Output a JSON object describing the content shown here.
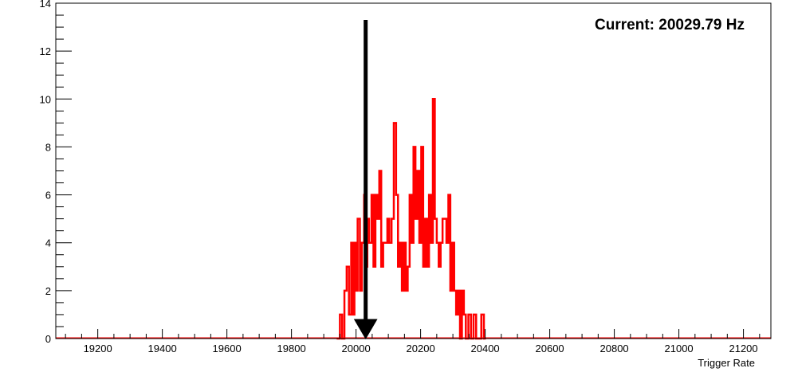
{
  "chart_data": {
    "type": "histogram",
    "xlabel": "Trigger Rate",
    "ylabel": "",
    "xlim": [
      19070,
      21285
    ],
    "ylim": [
      0,
      14
    ],
    "x_ticks": [
      19200,
      19400,
      19600,
      19800,
      20000,
      20200,
      20400,
      20600,
      20800,
      21000,
      21200
    ],
    "y_ticks": [
      0,
      2,
      4,
      6,
      8,
      10,
      12,
      14
    ],
    "grid": false,
    "series": [
      {
        "color": "#ff0000",
        "bins": [
          [
            19940,
            19950,
            0
          ],
          [
            19950,
            19957,
            1
          ],
          [
            19957,
            19964,
            0
          ],
          [
            19964,
            19971,
            2
          ],
          [
            19971,
            19978,
            3
          ],
          [
            19978,
            19985,
            1
          ],
          [
            19985,
            19990,
            4
          ],
          [
            19990,
            19995,
            1
          ],
          [
            19995,
            20000,
            4
          ],
          [
            20000,
            20005,
            2
          ],
          [
            20005,
            20012,
            5
          ],
          [
            20012,
            20018,
            2
          ],
          [
            20018,
            20025,
            4
          ],
          [
            20025,
            20030,
            6
          ],
          [
            20030,
            20035,
            3
          ],
          [
            20035,
            20040,
            5
          ],
          [
            20040,
            20048,
            4
          ],
          [
            20048,
            20054,
            6
          ],
          [
            20054,
            20060,
            3
          ],
          [
            20060,
            20066,
            6
          ],
          [
            20066,
            20072,
            5
          ],
          [
            20072,
            20078,
            7
          ],
          [
            20078,
            20084,
            3
          ],
          [
            20084,
            20090,
            4
          ],
          [
            20090,
            20097,
            4
          ],
          [
            20097,
            20103,
            5
          ],
          [
            20103,
            20110,
            4
          ],
          [
            20110,
            20117,
            5
          ],
          [
            20117,
            20124,
            9
          ],
          [
            20124,
            20130,
            6
          ],
          [
            20130,
            20136,
            3
          ],
          [
            20136,
            20142,
            4
          ],
          [
            20142,
            20148,
            2
          ],
          [
            20148,
            20154,
            4
          ],
          [
            20154,
            20160,
            2
          ],
          [
            20160,
            20166,
            3
          ],
          [
            20166,
            20172,
            6
          ],
          [
            20172,
            20178,
            4
          ],
          [
            20178,
            20184,
            8
          ],
          [
            20184,
            20190,
            5
          ],
          [
            20190,
            20196,
            7
          ],
          [
            20196,
            20202,
            4
          ],
          [
            20202,
            20208,
            8
          ],
          [
            20208,
            20214,
            3
          ],
          [
            20214,
            20220,
            5
          ],
          [
            20220,
            20226,
            3
          ],
          [
            20226,
            20232,
            6
          ],
          [
            20232,
            20238,
            4
          ],
          [
            20238,
            20244,
            10
          ],
          [
            20244,
            20250,
            5
          ],
          [
            20250,
            20256,
            4
          ],
          [
            20256,
            20262,
            3
          ],
          [
            20262,
            20268,
            4
          ],
          [
            20268,
            20274,
            5
          ],
          [
            20274,
            20280,
            5
          ],
          [
            20280,
            20286,
            4
          ],
          [
            20286,
            20292,
            6
          ],
          [
            20292,
            20298,
            2
          ],
          [
            20298,
            20304,
            4
          ],
          [
            20304,
            20310,
            2
          ],
          [
            20310,
            20316,
            1
          ],
          [
            20316,
            20322,
            2
          ],
          [
            20322,
            20328,
            0
          ],
          [
            20328,
            20334,
            2
          ],
          [
            20334,
            20340,
            1
          ],
          [
            20340,
            20348,
            0
          ],
          [
            20348,
            20356,
            1
          ],
          [
            20356,
            20364,
            0
          ],
          [
            20364,
            20372,
            1
          ],
          [
            20372,
            20380,
            0
          ],
          [
            20380,
            20388,
            0
          ],
          [
            20388,
            20396,
            1
          ],
          [
            20396,
            20402,
            0
          ]
        ]
      }
    ],
    "marker_arrow": {
      "x": 20029.79,
      "y_top": 13.3,
      "y_bottom": 0
    },
    "annotation": "Current: 20029.79 Hz"
  }
}
